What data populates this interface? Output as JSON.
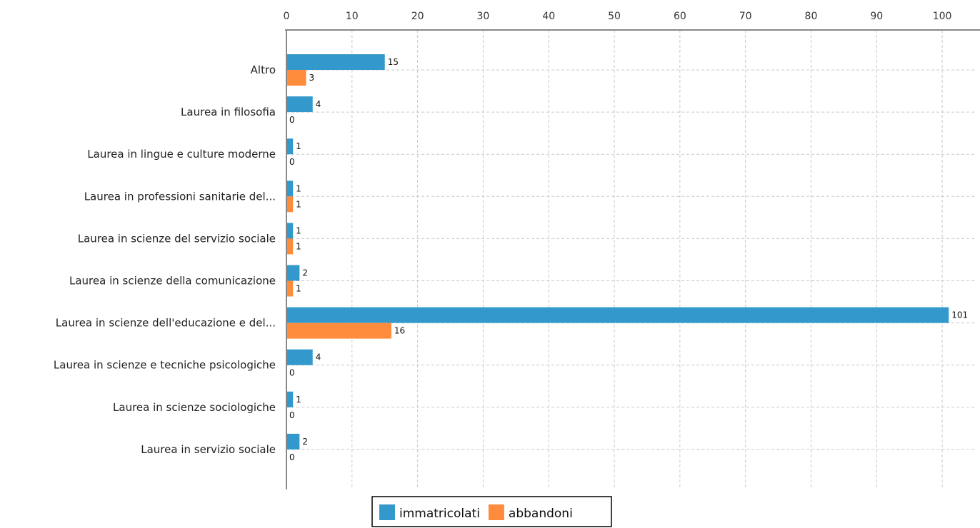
{
  "chart_data": {
    "type": "bar",
    "orientation": "horizontal",
    "categories": [
      "Altro",
      "Laurea in filosofia",
      "Laurea in lingue e culture moderne",
      "Laurea in professioni sanitarie del...",
      "Laurea in scienze del servizio sociale",
      "Laurea in scienze della comunicazione",
      "Laurea in scienze dell'educazione e del...",
      "Laurea in scienze e tecniche psicologiche",
      "Laurea in scienze sociologiche",
      "Laurea in servizio sociale"
    ],
    "series": [
      {
        "name": "immatricolati",
        "color": "#3399cc",
        "values": [
          15,
          4,
          1,
          1,
          1,
          2,
          101,
          4,
          1,
          2
        ]
      },
      {
        "name": "abbandoni",
        "color": "#ff8c3c",
        "values": [
          3,
          0,
          0,
          1,
          1,
          1,
          16,
          0,
          0,
          0
        ]
      }
    ],
    "xlim": [
      0,
      105
    ],
    "xticks": [
      0,
      10,
      20,
      30,
      40,
      50,
      60,
      70,
      80,
      90,
      100
    ],
    "xaxis_position": "top",
    "grid": true,
    "legend": "bottom-center",
    "data_labels": true,
    "title": "",
    "xlabel": "",
    "ylabel": ""
  }
}
